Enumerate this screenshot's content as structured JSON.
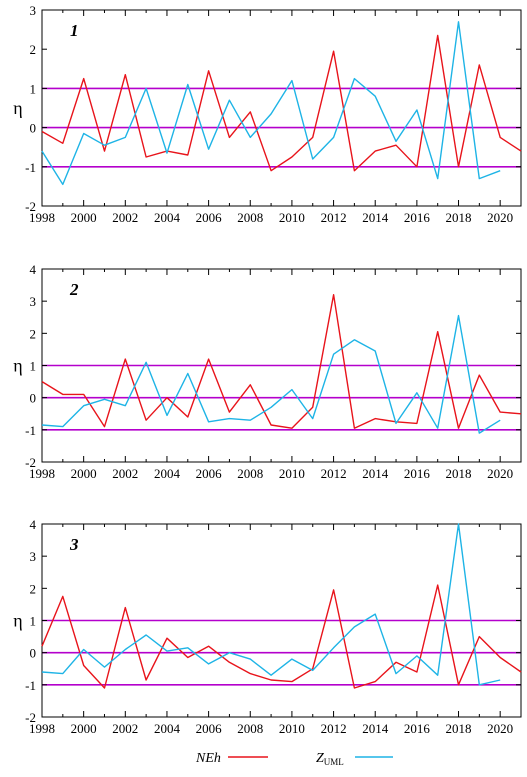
{
  "chart_data": [
    {
      "type": "line",
      "panel_label": "1",
      "ylabel": "η",
      "x": [
        1998,
        1999,
        2000,
        2001,
        2002,
        2003,
        2004,
        2005,
        2006,
        2007,
        2008,
        2009,
        2010,
        2011,
        2012,
        2013,
        2014,
        2015,
        2016,
        2017,
        2018,
        2019,
        2020,
        2021
      ],
      "xticks": [
        1998,
        2000,
        2002,
        2004,
        2006,
        2008,
        2010,
        2012,
        2014,
        2016,
        2018,
        2020
      ],
      "xlim": [
        1998,
        2021
      ],
      "ylim": [
        -2,
        3
      ],
      "yticks": [
        -2,
        -1,
        0,
        1,
        2,
        3
      ],
      "reference_lines": [
        -1,
        0,
        1
      ],
      "series": [
        {
          "key": "NEh",
          "values": [
            -0.1,
            -0.4,
            1.25,
            -0.6,
            1.35,
            -0.75,
            -0.6,
            -0.7,
            1.45,
            -0.25,
            0.4,
            -1.1,
            -0.75,
            -0.25,
            1.95,
            -1.1,
            -0.6,
            -0.45,
            -1.0,
            2.35,
            -1.0,
            1.6,
            -0.25,
            -0.6
          ]
        },
        {
          "key": "ZUML",
          "values": [
            -0.6,
            -1.45,
            -0.15,
            -0.45,
            -0.25,
            1.0,
            -0.65,
            1.1,
            -0.55,
            0.7,
            -0.25,
            0.35,
            1.2,
            -0.8,
            -0.25,
            1.25,
            0.8,
            -0.35,
            0.45,
            -1.3,
            2.7,
            -1.3,
            -1.1,
            null
          ]
        }
      ]
    },
    {
      "type": "line",
      "panel_label": "2",
      "ylabel": "η",
      "x": [
        1998,
        1999,
        2000,
        2001,
        2002,
        2003,
        2004,
        2005,
        2006,
        2007,
        2008,
        2009,
        2010,
        2011,
        2012,
        2013,
        2014,
        2015,
        2016,
        2017,
        2018,
        2019,
        2020,
        2021
      ],
      "xticks": [
        1998,
        2000,
        2002,
        2004,
        2006,
        2008,
        2010,
        2012,
        2014,
        2016,
        2018,
        2020
      ],
      "xlim": [
        1998,
        2021
      ],
      "ylim": [
        -2,
        4
      ],
      "yticks": [
        -2,
        -1,
        0,
        1,
        2,
        3,
        4
      ],
      "reference_lines": [
        -1,
        0,
        1
      ],
      "series": [
        {
          "key": "NEh",
          "values": [
            0.5,
            0.1,
            0.1,
            -0.9,
            1.2,
            -0.7,
            0.0,
            -0.6,
            1.2,
            -0.45,
            0.4,
            -0.85,
            -0.95,
            -0.3,
            3.2,
            -0.95,
            -0.65,
            -0.75,
            -0.8,
            2.05,
            -0.95,
            0.7,
            -0.45,
            -0.5
          ]
        },
        {
          "key": "ZUML",
          "values": [
            -0.85,
            -0.9,
            -0.25,
            -0.05,
            -0.25,
            1.1,
            -0.55,
            0.75,
            -0.75,
            -0.65,
            -0.7,
            -0.3,
            0.25,
            -0.65,
            1.35,
            1.8,
            1.45,
            -0.8,
            0.15,
            -0.95,
            2.55,
            -1.1,
            -0.7,
            null
          ]
        }
      ]
    },
    {
      "type": "line",
      "panel_label": "3",
      "ylabel": "η",
      "x": [
        1998,
        1999,
        2000,
        2001,
        2002,
        2003,
        2004,
        2005,
        2006,
        2007,
        2008,
        2009,
        2010,
        2011,
        2012,
        2013,
        2014,
        2015,
        2016,
        2017,
        2018,
        2019,
        2020,
        2021
      ],
      "xticks": [
        1998,
        2000,
        2002,
        2004,
        2006,
        2008,
        2010,
        2012,
        2014,
        2016,
        2018,
        2020
      ],
      "xlim": [
        1998,
        2021
      ],
      "ylim": [
        -2,
        4
      ],
      "yticks": [
        -2,
        -1,
        0,
        1,
        2,
        3,
        4
      ],
      "reference_lines": [
        -1,
        0,
        1
      ],
      "series": [
        {
          "key": "NEh",
          "values": [
            0.2,
            1.75,
            -0.4,
            -1.1,
            1.4,
            -0.85,
            0.45,
            -0.15,
            0.2,
            -0.3,
            -0.65,
            -0.85,
            -0.9,
            -0.5,
            1.95,
            -1.1,
            -0.9,
            -0.3,
            -0.6,
            2.1,
            -1.0,
            0.5,
            -0.15,
            -0.6
          ]
        },
        {
          "key": "ZUML",
          "values": [
            -0.6,
            -0.65,
            0.1,
            -0.45,
            0.1,
            0.55,
            0.05,
            0.15,
            -0.35,
            0.0,
            -0.2,
            -0.7,
            -0.2,
            -0.55,
            0.15,
            0.8,
            1.2,
            -0.65,
            -0.1,
            -0.7,
            4.0,
            -1.0,
            -0.85,
            null
          ]
        }
      ]
    }
  ],
  "legend": [
    {
      "key": "NEh",
      "label": "NEh",
      "color": "#e8141b"
    },
    {
      "key": "ZUML",
      "label_main": "Z",
      "label_sub": "UML",
      "color": "#1eb4e6"
    }
  ],
  "colors": {
    "reference_line": "#b400cc",
    "axis": "#000000"
  }
}
